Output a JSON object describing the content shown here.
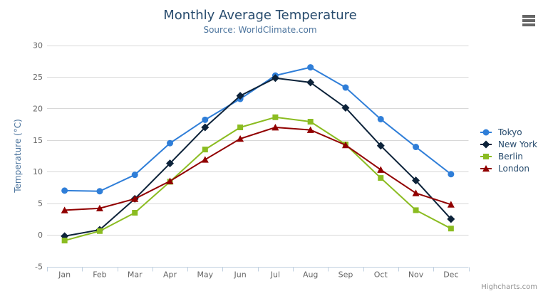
{
  "chart_data": {
    "type": "line",
    "title": "Monthly Average Temperature",
    "subtitle": "Source: WorldClimate.com",
    "categories": [
      "Jan",
      "Feb",
      "Mar",
      "Apr",
      "May",
      "Jun",
      "Jul",
      "Aug",
      "Sep",
      "Oct",
      "Nov",
      "Dec"
    ],
    "xlabel": "",
    "ylabel": "Temperature (°C)",
    "ylim": [
      -5,
      30
    ],
    "ytick_interval": 5,
    "grid": true,
    "legend_position": "right-middle",
    "series": [
      {
        "name": "Tokyo",
        "color": "#2f7ed8",
        "marker": "circle",
        "values": [
          7.0,
          6.9,
          9.5,
          14.5,
          18.2,
          21.5,
          25.2,
          26.5,
          23.3,
          18.3,
          13.9,
          9.6
        ]
      },
      {
        "name": "New York",
        "color": "#0d233a",
        "marker": "diamond",
        "values": [
          -0.2,
          0.8,
          5.7,
          11.3,
          17.0,
          22.0,
          24.8,
          24.1,
          20.1,
          14.1,
          8.6,
          2.5
        ]
      },
      {
        "name": "Berlin",
        "color": "#8bbc21",
        "marker": "square",
        "values": [
          -0.9,
          0.6,
          3.5,
          8.4,
          13.5,
          17.0,
          18.6,
          17.9,
          14.3,
          9.0,
          3.9,
          1.0
        ]
      },
      {
        "name": "London",
        "color": "#910000",
        "marker": "triangle",
        "values": [
          3.9,
          4.2,
          5.7,
          8.5,
          11.9,
          15.2,
          17.0,
          16.6,
          14.2,
          10.3,
          6.6,
          4.8
        ]
      }
    ]
  },
  "credits": {
    "label": "Highcharts.com"
  },
  "export_menu": {
    "icon": "hamburger-icon"
  },
  "colors": {
    "title_text": "#274b6d",
    "subtitle_text": "#4d759e",
    "axis_label_text": "#666666",
    "axis_title_text": "#4d759e",
    "legend_text": "#274b6d",
    "grid_line": "#d8d8d8",
    "axis_line": "#c0d0e0",
    "credits_text": "#909090",
    "menu_icon": "#666666",
    "background": "#ffffff"
  }
}
